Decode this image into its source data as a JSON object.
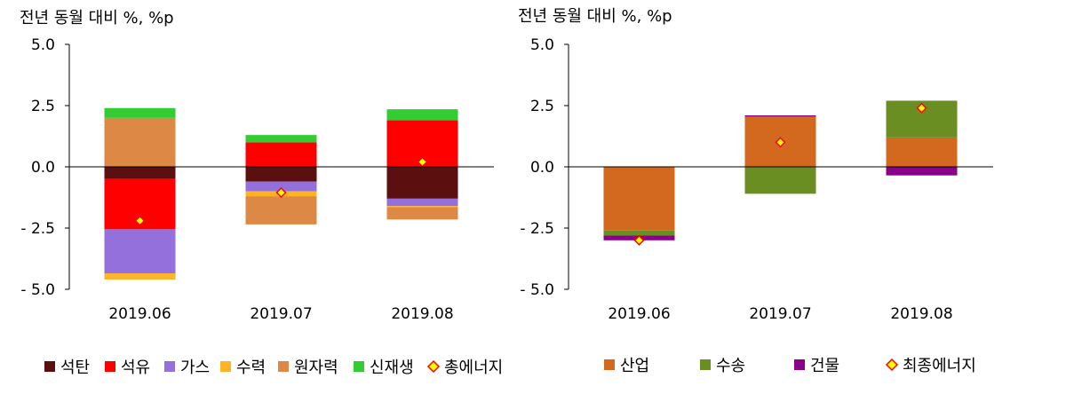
{
  "chart_data": [
    {
      "type": "bar",
      "stacked": true,
      "ylabel": "전년 동월 대비 %, %p",
      "ylim": [
        -5.0,
        5.0
      ],
      "yticks": [
        "5.0",
        "2.5",
        "0.0",
        "- 2.5",
        "- 5.0"
      ],
      "ytick_values": [
        5.0,
        2.5,
        0.0,
        -2.5,
        -5.0
      ],
      "categories": [
        "2019.06",
        "2019.07",
        "2019.08"
      ],
      "series": [
        {
          "name": "석탄",
          "color": "#5c0f0f",
          "values": [
            -0.5,
            -0.6,
            -1.3
          ]
        },
        {
          "name": "석유",
          "color": "#ff0000",
          "values": [
            -2.05,
            1.0,
            1.9
          ]
        },
        {
          "name": "가스",
          "color": "#9370db",
          "values": [
            -1.8,
            -0.4,
            -0.3
          ]
        },
        {
          "name": "수력",
          "color": "#ffb327",
          "values": [
            -0.25,
            -0.2,
            -0.05
          ]
        },
        {
          "name": "원자력",
          "color": "#dd8844",
          "values": [
            2.0,
            -1.15,
            -0.5
          ]
        },
        {
          "name": "신재생",
          "color": "#33cc33",
          "values": [
            0.4,
            0.3,
            0.45
          ]
        }
      ],
      "total": {
        "name": "총에너지",
        "values": [
          -2.2,
          -1.05,
          0.2
        ]
      }
    },
    {
      "type": "bar",
      "stacked": true,
      "ylabel": "전년 동월 대비 %, %p",
      "ylim": [
        -5.0,
        5.0
      ],
      "yticks": [
        "5.0",
        "2.5",
        "0.0",
        "- 2.5",
        "- 5.0"
      ],
      "ytick_values": [
        5.0,
        2.5,
        0.0,
        -2.5,
        -5.0
      ],
      "categories": [
        "2019.06",
        "2019.07",
        "2019.08"
      ],
      "series": [
        {
          "name": "산업",
          "color": "#d2691e",
          "values": [
            -2.6,
            2.05,
            1.2
          ]
        },
        {
          "name": "수송",
          "color": "#6b8e23",
          "values": [
            -0.2,
            -1.1,
            1.5
          ]
        },
        {
          "name": "건물",
          "color": "#8b008b",
          "values": [
            -0.2,
            0.05,
            -0.35
          ]
        }
      ],
      "total": {
        "name": "최종에너지",
        "values": [
          -3.0,
          1.0,
          2.4
        ]
      }
    }
  ]
}
